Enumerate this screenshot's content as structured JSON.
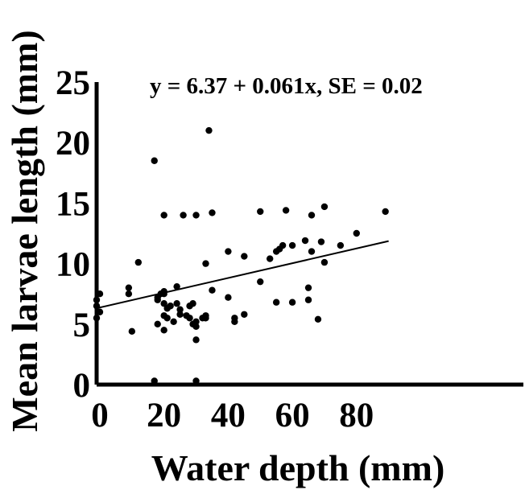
{
  "chart_data": {
    "type": "scatter",
    "title": "",
    "annotation": "y = 6.37 + 0.061x, SE = 0.02",
    "xlabel": "Water depth (mm)",
    "ylabel": "Mean larvae length (mm)",
    "xlim": [
      -1,
      132
    ],
    "ylim": [
      0,
      25
    ],
    "x_ticks": [
      0,
      20,
      40,
      60,
      80
    ],
    "y_ticks": [
      0,
      5,
      10,
      15,
      20,
      25
    ],
    "grid": false,
    "legend": "none",
    "colors": {
      "points": "#000000",
      "line": "#000000",
      "axis": "#000000"
    },
    "regression": {
      "intercept": 6.37,
      "slope": 0.061,
      "se": 0.02,
      "x_range": [
        -1,
        90
      ]
    },
    "series": [
      {
        "x": [
          -1,
          -1,
          0,
          -1,
          0,
          9,
          9,
          10,
          12,
          17,
          17,
          18,
          18,
          18,
          19,
          20,
          20,
          20,
          20,
          20,
          20,
          21,
          21,
          22,
          23,
          24,
          24,
          25,
          25,
          26,
          27,
          28,
          28,
          29,
          29,
          30,
          30,
          30,
          30,
          30,
          32,
          33,
          33,
          33,
          34,
          35,
          35,
          40,
          40,
          42,
          42,
          45,
          45,
          50,
          50,
          53,
          55,
          55,
          56,
          57,
          58,
          60,
          60,
          64,
          65,
          65,
          66,
          66,
          68,
          69,
          70,
          70,
          75,
          80,
          89
        ],
        "y": [
          5.5,
          6.5,
          7.5,
          7.0,
          6.0,
          7.5,
          8.0,
          4.4,
          10.1,
          18.5,
          0.3,
          7.2,
          7.0,
          5.0,
          7.5,
          7.7,
          7.5,
          5.7,
          4.5,
          14.0,
          6.7,
          6.3,
          5.5,
          6.5,
          5.2,
          8.1,
          6.7,
          6.2,
          5.8,
          14.0,
          5.7,
          6.5,
          5.5,
          6.7,
          5.0,
          3.7,
          0.3,
          14.0,
          4.8,
          5.2,
          5.5,
          10.0,
          5.7,
          5.5,
          21.0,
          14.2,
          7.8,
          11.0,
          7.2,
          5.5,
          5.2,
          10.6,
          5.8,
          14.3,
          8.5,
          10.4,
          6.8,
          11.0,
          11.2,
          11.5,
          14.4,
          11.5,
          6.8,
          11.9,
          8.0,
          7.0,
          11.0,
          14.0,
          5.4,
          11.8,
          10.1,
          14.7,
          11.5,
          12.5,
          14.3
        ]
      }
    ]
  }
}
